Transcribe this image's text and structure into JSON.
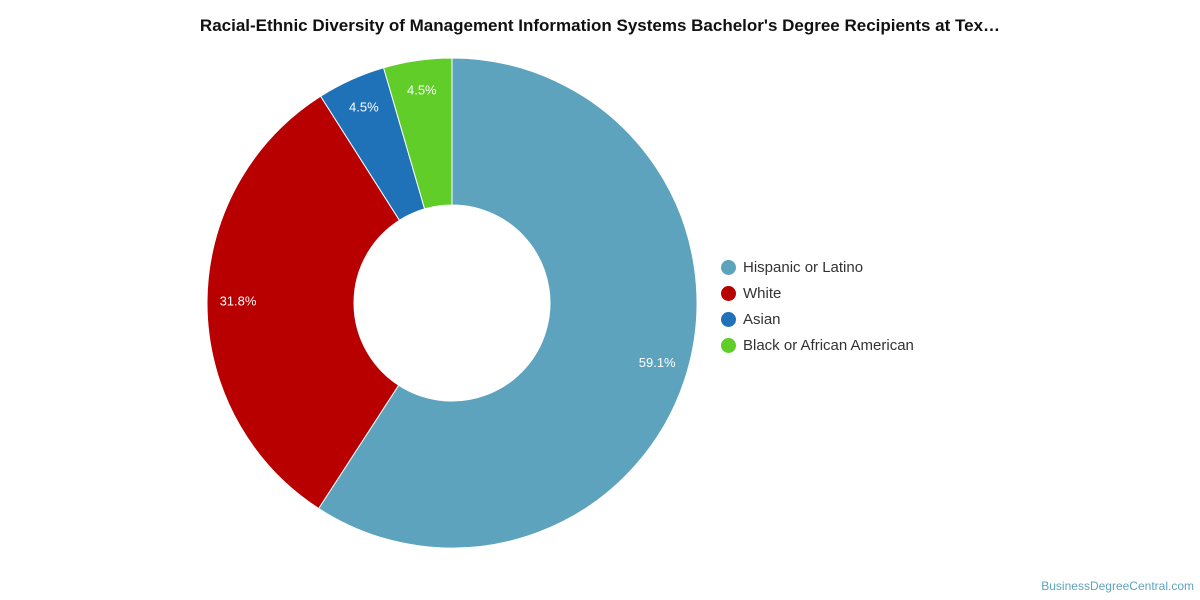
{
  "chart_data": {
    "type": "pie",
    "title": "Racial-Ethnic Diversity of Management Information Systems Bachelor's Degree Recipients at Tex…",
    "donut": true,
    "legend_position": "right",
    "slices": [
      {
        "label": "Hispanic or Latino",
        "value": 59.1,
        "display": "59.1%",
        "color": "#5ea3be"
      },
      {
        "label": "White",
        "value": 31.8,
        "display": "31.8%",
        "color": "#b90000"
      },
      {
        "label": "Asian",
        "value": 4.5,
        "display": "4.5%",
        "color": "#1f72b8"
      },
      {
        "label": "Black or African American",
        "value": 4.5,
        "display": "4.5%",
        "color": "#60cd28"
      }
    ]
  },
  "footer": {
    "credit": "BusinessDegreeCentral.com"
  }
}
